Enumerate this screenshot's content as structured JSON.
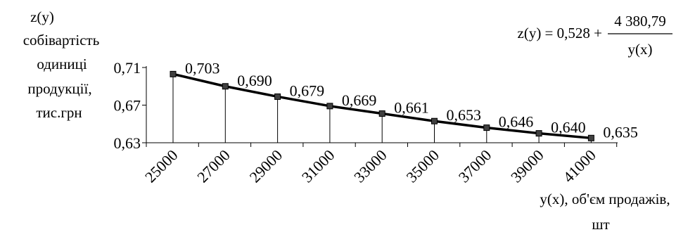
{
  "chart_data": {
    "type": "line",
    "title": "",
    "ylabel_lines": [
      "z(y)",
      "собівартість",
      "одиниці",
      "продукції,",
      "тис.грн"
    ],
    "xlabel_lines": [
      "y(x), об'єм продажів,",
      "шт"
    ],
    "formula": {
      "lhs": "z(y) = 0,528 +",
      "numerator": "4 380,79",
      "denominator": "y(x)"
    },
    "x": [
      25000,
      27000,
      29000,
      31000,
      33000,
      35000,
      37000,
      39000,
      41000
    ],
    "x_tick_labels": [
      "25000",
      "27000",
      "29000",
      "31000",
      "33000",
      "35000",
      "37000",
      "39000",
      "41000"
    ],
    "y_tick_values": [
      0.63,
      0.67,
      0.71
    ],
    "y_tick_labels": [
      "0,63",
      "0,67",
      "0,71"
    ],
    "ylim": [
      0.63,
      0.71
    ],
    "series": [
      {
        "values": [
          0.703,
          0.69,
          0.679,
          0.669,
          0.661,
          0.653,
          0.646,
          0.64,
          0.635
        ],
        "labels": [
          "0,703",
          "0,690",
          "0,679",
          "0,669",
          "0,661",
          "0,653",
          "0,646",
          "0,640",
          "0,635"
        ]
      }
    ],
    "grid": false,
    "drop_lines": true,
    "colors": {
      "line": "#000000",
      "marker": "#404040"
    }
  }
}
